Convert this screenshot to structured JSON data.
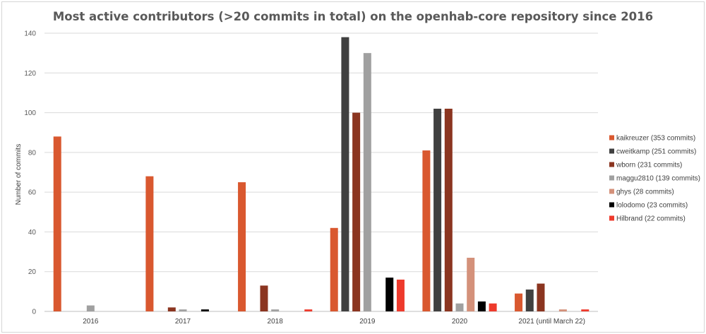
{
  "chart_data": {
    "type": "bar",
    "title": "Most active contributors (>20 commits in total) on the openhab-core repository since 2016",
    "xlabel": "",
    "ylabel": "Number of commits",
    "ylim": [
      0,
      140
    ],
    "yticks": [
      0,
      20,
      40,
      60,
      80,
      100,
      120,
      140
    ],
    "grid": true,
    "legend_position": "right",
    "categories": [
      "2016",
      "2017",
      "2018",
      "2019",
      "2020",
      "2021 (until March 22)"
    ],
    "series": [
      {
        "name": "kaikreuzer (353 commits)",
        "color": "#d9582f",
        "values": [
          88,
          68,
          65,
          42,
          81,
          9
        ]
      },
      {
        "name": "cweitkamp (251 commits)",
        "color": "#404040",
        "values": [
          0,
          0,
          0,
          138,
          102,
          11
        ]
      },
      {
        "name": "wborn (231 commits)",
        "color": "#8b3520",
        "values": [
          0,
          2,
          13,
          100,
          102,
          14
        ]
      },
      {
        "name": "maggu2810 (139 commits)",
        "color": "#a0a0a0",
        "values": [
          3,
          1,
          1,
          130,
          4,
          0
        ]
      },
      {
        "name": "ghys (28 commits)",
        "color": "#d4917a",
        "values": [
          0,
          0,
          0,
          0,
          27,
          1
        ]
      },
      {
        "name": "lolodomo (23 commits)",
        "color": "#000000",
        "values": [
          0,
          1,
          0,
          17,
          5,
          0
        ]
      },
      {
        "name": "Hilbrand (22 commits)",
        "color": "#ee3a2c",
        "values": [
          0,
          0,
          1,
          16,
          4,
          1
        ]
      }
    ]
  }
}
